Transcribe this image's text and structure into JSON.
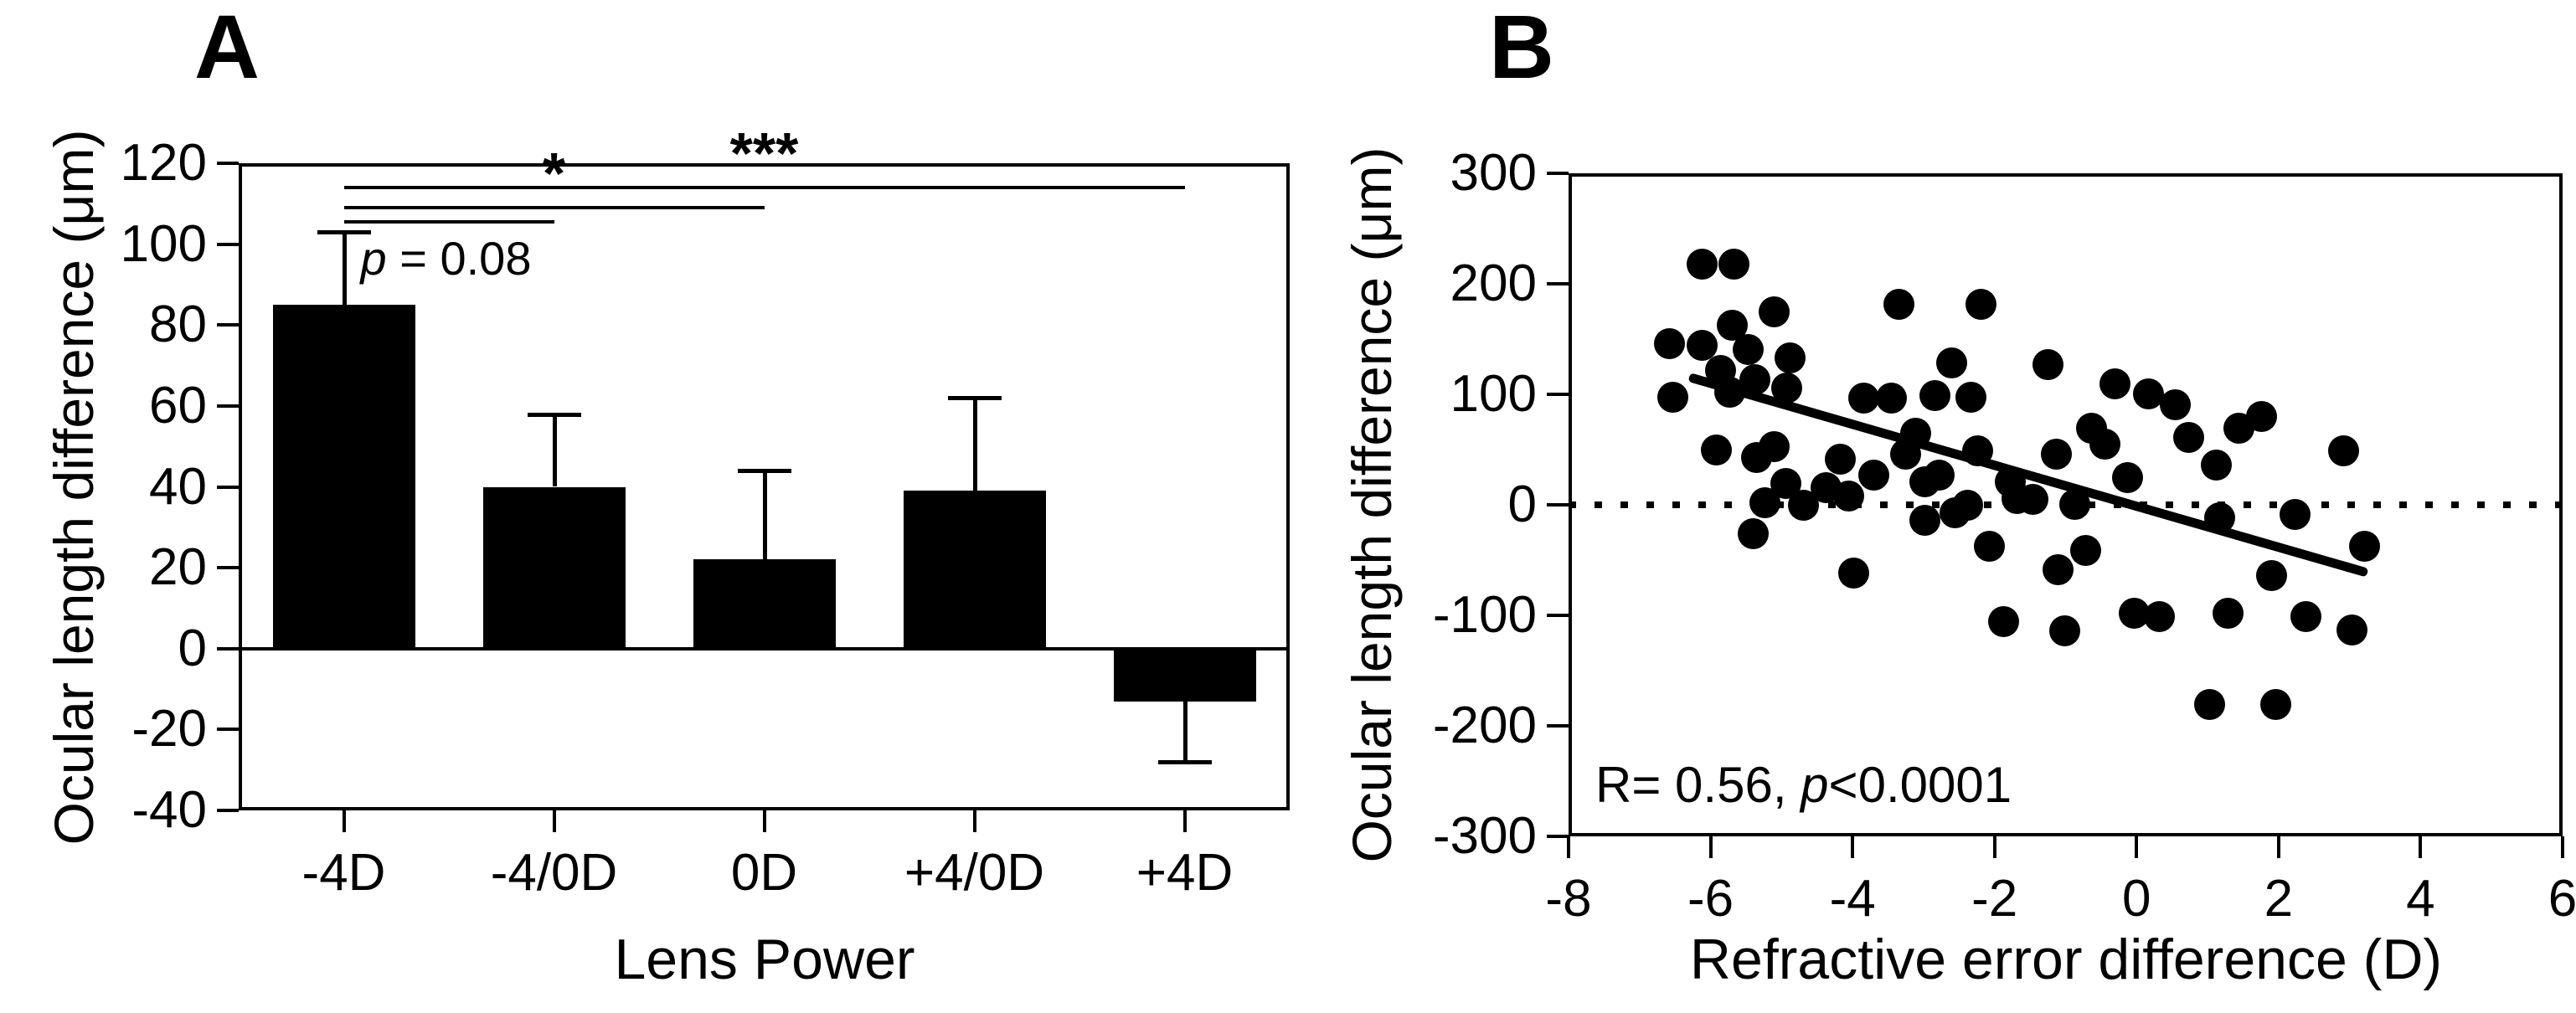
{
  "figure": {
    "background": "#ffffff",
    "ink": "#000000"
  },
  "panel_a": {
    "letter": "A",
    "ylabel": "Ocular length difference (μm)",
    "xlabel": "Lens Power"
  },
  "panel_b": {
    "letter": "B",
    "ylabel": "Ocular length difference (μm)",
    "xlabel": "Refractive error difference (D)",
    "stats": {
      "prefix": "R= 0.56, ",
      "italic": "p",
      "suffix": "<0.0001"
    }
  },
  "chart_data": [
    {
      "panel": "A",
      "type": "bar",
      "title": "A",
      "xlabel": "Lens Power",
      "ylabel": "Ocular length difference (μm)",
      "categories": [
        "-4D",
        "-4/0D",
        "0D",
        "+4/0D",
        "+4D"
      ],
      "values": [
        85,
        40,
        22,
        39,
        -13
      ],
      "error_sem": [
        18,
        18,
        22,
        23,
        15
      ],
      "error_caps_at": [
        103,
        58,
        44,
        62,
        -28
      ],
      "ylim": [
        -40,
        120
      ],
      "yticks": [
        120,
        100,
        80,
        60,
        40,
        20,
        0,
        -20,
        -40
      ],
      "bar_color": "#000000",
      "grid": false,
      "significance": [
        {
          "from": 0,
          "to": 1,
          "y": 105.5,
          "label_parts": [
            [
              "p",
              true
            ],
            [
              " = 0.08",
              false
            ]
          ],
          "label_position": "below",
          "label_align": "left",
          "label_size": 56,
          "label_bold": false
        },
        {
          "from": 0,
          "to": 2,
          "y": 109,
          "label_parts": [
            [
              "*",
              false
            ]
          ],
          "label_position": "above",
          "label_align": "center",
          "label_size": 70,
          "label_bold": true
        },
        {
          "from": 0,
          "to": 4,
          "y": 114,
          "label_parts": [
            [
              "***",
              false
            ]
          ],
          "label_position": "above",
          "label_align": "center",
          "label_size": 70,
          "label_bold": true
        }
      ]
    },
    {
      "panel": "B",
      "type": "scatter",
      "title": "B",
      "xlabel": "Refractive error difference (D)",
      "ylabel": "Ocular length difference (μm)",
      "xlim": [
        -8,
        6
      ],
      "ylim": [
        -300,
        300
      ],
      "xticks": [
        -8,
        -6,
        -4,
        -2,
        0,
        2,
        4,
        6
      ],
      "yticks": [
        300,
        200,
        100,
        0,
        -100,
        -200,
        -300
      ],
      "grid": false,
      "zero_reference_line": {
        "y": 0,
        "style": "dotted"
      },
      "regression": {
        "x1": -6.3,
        "y1": 116,
        "x2": 3.25,
        "y2": -61
      },
      "stats_label": "R= 0.56, p<0.0001",
      "marker_color": "#000000",
      "points": [
        [
          -6.58,
          146
        ],
        [
          -6.54,
          98
        ],
        [
          -6.12,
          218
        ],
        [
          -6.12,
          145
        ],
        [
          -5.93,
          50
        ],
        [
          -5.87,
          122
        ],
        [
          -5.73,
          102
        ],
        [
          -5.7,
          163
        ],
        [
          -5.68,
          218
        ],
        [
          -5.48,
          141
        ],
        [
          -5.41,
          -26
        ],
        [
          -5.38,
          114
        ],
        [
          -5.36,
          43
        ],
        [
          -5.24,
          2
        ],
        [
          -5.11,
          175
        ],
        [
          -5.11,
          53
        ],
        [
          -4.95,
          20
        ],
        [
          -4.93,
          106
        ],
        [
          -4.89,
          133
        ],
        [
          -4.7,
          0
        ],
        [
          -4.38,
          16
        ],
        [
          -4.18,
          42
        ],
        [
          -4.06,
          8
        ],
        [
          -3.99,
          -61
        ],
        [
          -3.85,
          97
        ],
        [
          -3.71,
          27
        ],
        [
          -3.46,
          97
        ],
        [
          -3.35,
          182
        ],
        [
          -3.26,
          46
        ],
        [
          -3.12,
          65
        ],
        [
          -2.99,
          21
        ],
        [
          -2.99,
          -14
        ],
        [
          -2.85,
          99
        ],
        [
          -2.79,
          27
        ],
        [
          -2.61,
          129
        ],
        [
          -2.56,
          -7
        ],
        [
          -2.38,
          0
        ],
        [
          -2.34,
          98
        ],
        [
          -2.25,
          49
        ],
        [
          -2.2,
          182
        ],
        [
          -2.08,
          -37
        ],
        [
          -1.88,
          -105
        ],
        [
          -1.78,
          21
        ],
        [
          -1.69,
          6
        ],
        [
          -1.47,
          5
        ],
        [
          -1.25,
          127
        ],
        [
          -1.14,
          46
        ],
        [
          -1.11,
          -58
        ],
        [
          -1.02,
          -114
        ],
        [
          -0.88,
          1
        ],
        [
          -0.72,
          -41
        ],
        [
          -0.64,
          70
        ],
        [
          -0.45,
          55
        ],
        [
          -0.31,
          110
        ],
        [
          -0.13,
          25
        ],
        [
          -0.04,
          -98
        ],
        [
          0.16,
          101
        ],
        [
          0.31,
          -101
        ],
        [
          0.54,
          91
        ],
        [
          0.73,
          61
        ],
        [
          1.02,
          -180
        ],
        [
          1.12,
          36
        ],
        [
          1.16,
          -11
        ],
        [
          1.28,
          -98
        ],
        [
          1.43,
          70
        ],
        [
          1.75,
          80
        ],
        [
          1.9,
          -64
        ],
        [
          1.95,
          -180
        ],
        [
          2.22,
          -8
        ],
        [
          2.38,
          -101
        ],
        [
          2.91,
          49
        ],
        [
          3.03,
          -113
        ],
        [
          3.2,
          -37
        ]
      ]
    }
  ]
}
